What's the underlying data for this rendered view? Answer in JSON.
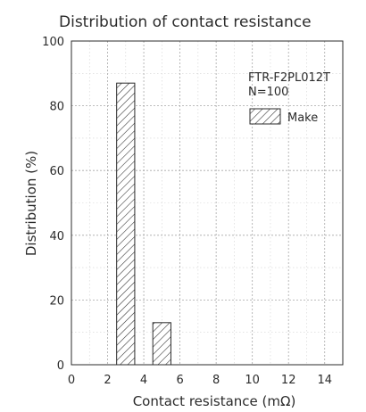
{
  "chart_data": {
    "type": "bar",
    "title": "Distribution of contact resistance",
    "xlabel": "Contact resistance (mΩ)",
    "ylabel": "Distribution (%)",
    "xlim": [
      0,
      15
    ],
    "ylim": [
      0,
      100
    ],
    "xticks": [
      0,
      2,
      4,
      6,
      8,
      10,
      12,
      14
    ],
    "yticks": [
      0,
      20,
      40,
      60,
      80,
      100
    ],
    "bars": [
      {
        "x_start": 2.5,
        "x_end": 3.5,
        "value": 87
      },
      {
        "x_start": 4.5,
        "x_end": 5.5,
        "value": 13
      }
    ],
    "legend": {
      "placement": "top-right",
      "lines": [
        "FTR-F2PL012T",
        "N=100"
      ],
      "series_name": "Make"
    },
    "grid": true,
    "colors": {
      "bar_fill": "#ffffff",
      "hatch": "#2b2b2b",
      "axis": "#2b2b2b"
    }
  }
}
